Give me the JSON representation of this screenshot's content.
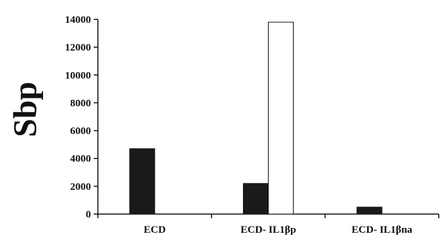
{
  "chart_data": {
    "type": "bar",
    "ylabel": "Sbp",
    "xlabel": "",
    "title": "",
    "categories": [
      "ECD",
      "ECD- IL1βp",
      "ECD- IL1βna"
    ],
    "yticks": [
      "0",
      "2000",
      "4000",
      "6000",
      "8000",
      "10000",
      "12000",
      "14000"
    ],
    "ylim": [
      0,
      14000
    ],
    "grid": false,
    "series": [
      {
        "values": [
          4700,
          2200,
          500
        ],
        "color": "#1a1a1a"
      },
      {
        "values": [
          0,
          13800,
          0
        ],
        "color": "#ffffff"
      }
    ]
  }
}
